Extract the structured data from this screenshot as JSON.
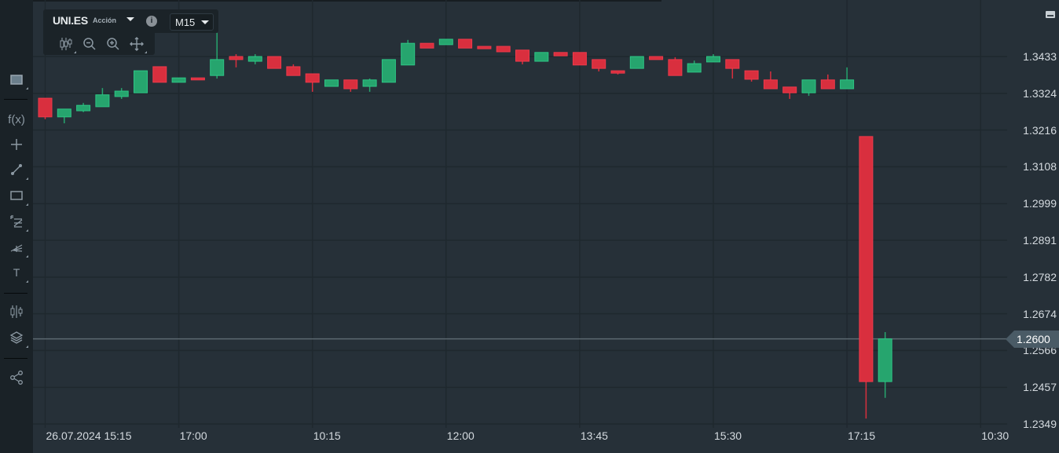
{
  "header": {
    "symbol": "UNI.ES",
    "instrument_type": "Acción",
    "timeframe": "M15",
    "icons": [
      "candles-settings-icon",
      "zoom-out-icon",
      "zoom-in-icon",
      "pan-move-icon",
      "info-icon",
      "dropdown-icon"
    ]
  },
  "sidebar": {
    "items": [
      {
        "icon": "chart-window-icon"
      },
      {
        "icon": "indicators-fx-icon",
        "label": "f(x)"
      },
      {
        "icon": "crosshair-icon"
      },
      {
        "icon": "trendline-icon"
      },
      {
        "icon": "rectangle-icon"
      },
      {
        "icon": "fibonacci-icon"
      },
      {
        "icon": "pitchfork-icon"
      },
      {
        "icon": "text-icon",
        "label": "T"
      },
      {
        "icon": "chart-type-candles-icon"
      },
      {
        "icon": "layers-icon"
      },
      {
        "icon": "share-icon"
      }
    ]
  },
  "colors": {
    "up": "#26a56e",
    "down": "#d92f3e",
    "background": "#263038",
    "grid": "#1f282e",
    "price_line": "#5c6870"
  },
  "current_price": "1.2600",
  "chart_data": {
    "type": "candlestick",
    "symbol": "UNI.ES",
    "timeframe": "M15",
    "y_ticks": [
      "1.3433",
      "1.3324",
      "1.3216",
      "1.3108",
      "1.2999",
      "1.2891",
      "1.2782",
      "1.2674",
      "1.2566",
      "1.2457",
      "1.2349"
    ],
    "ylim": [
      1.2349,
      1.3433
    ],
    "x_ticks": [
      {
        "index": 0,
        "label": "26.07.2024 15:15"
      },
      {
        "index": 7,
        "label": "17:00"
      },
      {
        "index": 14,
        "label": "10:15"
      },
      {
        "index": 21,
        "label": "12:00"
      },
      {
        "index": 28,
        "label": "13:45"
      },
      {
        "index": 35,
        "label": "15:30"
      },
      {
        "index": 42,
        "label": "17:15"
      },
      {
        "index": 49,
        "label": "10:30"
      }
    ],
    "grid": true,
    "current_price": 1.26,
    "candles": [
      [
        1.331,
        1.331,
        1.3248,
        1.3255
      ],
      [
        1.3255,
        1.3278,
        1.3236,
        1.3278
      ],
      [
        1.3273,
        1.3296,
        1.3269,
        1.3289
      ],
      [
        1.3285,
        1.334,
        1.3285,
        1.332
      ],
      [
        1.3315,
        1.334,
        1.3308,
        1.3331
      ],
      [
        1.3326,
        1.3391,
        1.3326,
        1.3391
      ],
      [
        1.3403,
        1.3403,
        1.3357,
        1.3357
      ],
      [
        1.3357,
        1.337,
        1.3357,
        1.337
      ],
      [
        1.337,
        1.337,
        1.3364,
        1.3364
      ],
      [
        1.3377,
        1.3503,
        1.3368,
        1.3424
      ],
      [
        1.3433,
        1.344,
        1.3401,
        1.3424
      ],
      [
        1.3419,
        1.344,
        1.341,
        1.3433
      ],
      [
        1.3433,
        1.3433,
        1.3398,
        1.3398
      ],
      [
        1.3403,
        1.341,
        1.3377,
        1.3377
      ],
      [
        1.3382,
        1.3382,
        1.3329,
        1.3357
      ],
      [
        1.3345,
        1.3364,
        1.3345,
        1.3364
      ],
      [
        1.3364,
        1.3364,
        1.3329,
        1.3338
      ],
      [
        1.3345,
        1.3368,
        1.3329,
        1.3364
      ],
      [
        1.3357,
        1.3424,
        1.3357,
        1.3424
      ],
      [
        1.3408,
        1.3482,
        1.3408,
        1.3472
      ],
      [
        1.3472,
        1.3472,
        1.3458,
        1.3458
      ],
      [
        1.3468,
        1.3484,
        1.3468,
        1.3484
      ],
      [
        1.3484,
        1.3484,
        1.3458,
        1.3458
      ],
      [
        1.3463,
        1.3463,
        1.3456,
        1.3456
      ],
      [
        1.3463,
        1.3463,
        1.3447,
        1.3447
      ],
      [
        1.3452,
        1.3452,
        1.341,
        1.3419
      ],
      [
        1.3419,
        1.3445,
        1.3419,
        1.3445
      ],
      [
        1.3445,
        1.3445,
        1.3435,
        1.3435
      ],
      [
        1.3445,
        1.3445,
        1.3408,
        1.3408
      ],
      [
        1.3424,
        1.3424,
        1.3389,
        1.3398
      ],
      [
        1.3391,
        1.3391,
        1.338,
        1.3384
      ],
      [
        1.3398,
        1.3433,
        1.3398,
        1.3433
      ],
      [
        1.3433,
        1.3433,
        1.3424,
        1.3424
      ],
      [
        1.3424,
        1.3431,
        1.3377,
        1.3377
      ],
      [
        1.3387,
        1.3421,
        1.3387,
        1.3412
      ],
      [
        1.3417,
        1.344,
        1.3417,
        1.3433
      ],
      [
        1.3424,
        1.3424,
        1.3368,
        1.3398
      ],
      [
        1.3391,
        1.3391,
        1.3359,
        1.3366
      ],
      [
        1.3364,
        1.3389,
        1.3338,
        1.3338
      ],
      [
        1.3343,
        1.3343,
        1.3308,
        1.3326
      ],
      [
        1.3326,
        1.3364,
        1.3317,
        1.3364
      ],
      [
        1.3364,
        1.338,
        1.3338,
        1.3338
      ],
      [
        1.3338,
        1.3401,
        1.3338,
        1.3364
      ],
      [
        1.3197,
        1.3197,
        1.2365,
        1.2474
      ],
      [
        1.2474,
        1.262,
        1.2426,
        1.26
      ]
    ]
  }
}
